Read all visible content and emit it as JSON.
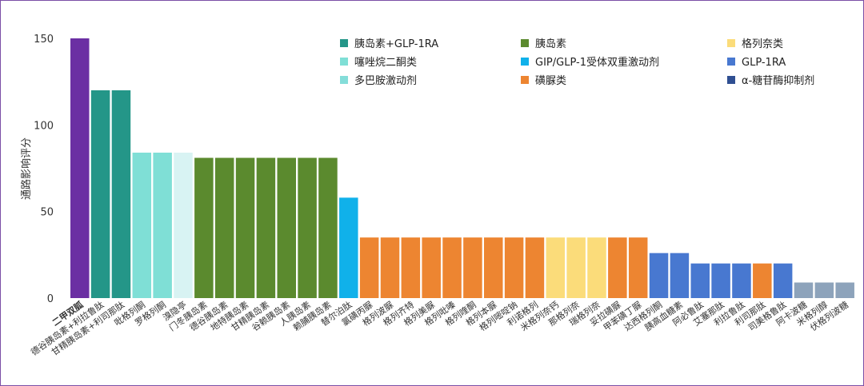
{
  "chart_data": {
    "type": "bar",
    "ylabel": "通路影响评分",
    "xlabel": "",
    "title": "",
    "ylim": [
      0,
      150
    ],
    "yticks": [
      0,
      50,
      100,
      150
    ],
    "grid": false,
    "legend_position": "top-right",
    "highlight_color": "#6b2fa3",
    "legend": [
      {
        "label": "胰岛素+GLP-1RA",
        "color": "#249688"
      },
      {
        "label": "胰岛素",
        "color": "#5b8a2e"
      },
      {
        "label": "格列奈类",
        "color": "#fbdc7a"
      },
      {
        "label": "噻唑烷二酮类",
        "color": "#7fdfd6"
      },
      {
        "label": "GIP/GLP-1受体双重激动剂",
        "color": "#10b1ea"
      },
      {
        "label": "GLP-1RA",
        "color": "#4878d0"
      },
      {
        "label": "多巴胺激动剂",
        "color": "#84ddd9"
      },
      {
        "label": "磺脲类",
        "color": "#ed8531"
      },
      {
        "label": "α-糖苷酶抑制剂",
        "color": "#2f4f92"
      }
    ],
    "categories": [
      "二甲双胍",
      "德谷胰岛素+利拉鲁肽",
      "甘精胰岛素+利司那肽",
      "吡格列酮",
      "罗格列酮",
      "溴隐亭",
      "门冬胰岛素",
      "德谷胰岛素",
      "地特胰岛素",
      "甘精胰岛素",
      "谷赖胰岛素",
      "人胰岛素",
      "赖脯胰岛素",
      "替尔泊肽",
      "氯磺丙脲",
      "格列波脲",
      "格列齐特",
      "格列美脲",
      "格列吡嗪",
      "格列喹酮",
      "格列本脲",
      "格列嘧啶钠",
      "利诺格列",
      "米格列奈钙",
      "那格列奈",
      "瑞格列奈",
      "妥拉磺脲",
      "甲苯磺丁脲",
      "达西格列酮",
      "胰高血糖素",
      "阿必鲁肽",
      "艾塞那肽",
      "利拉鲁肽",
      "利司那肽",
      "司美格鲁肽",
      "阿卡波糖",
      "米格列醇",
      "伏格列波糖"
    ],
    "values": [
      150,
      120,
      120,
      84,
      84,
      84,
      81,
      81,
      81,
      81,
      81,
      81,
      81,
      58,
      35,
      35,
      35,
      35,
      35,
      35,
      35,
      35,
      35,
      35,
      35,
      35,
      35,
      35,
      26,
      26,
      20,
      20,
      20,
      20,
      20,
      9,
      9,
      9
    ],
    "colors": [
      "#6b2fa3",
      "#249688",
      "#249688",
      "#7fdfd6",
      "#7fdfd6",
      "#d8f3f3",
      "#5b8a2e",
      "#5b8a2e",
      "#5b8a2e",
      "#5b8a2e",
      "#5b8a2e",
      "#5b8a2e",
      "#5b8a2e",
      "#10b1ea",
      "#ed8531",
      "#ed8531",
      "#ed8531",
      "#ed8531",
      "#ed8531",
      "#ed8531",
      "#ed8531",
      "#ed8531",
      "#ed8531",
      "#fbdc7a",
      "#fbdc7a",
      "#fbdc7a",
      "#ed8531",
      "#ed8531",
      "#4878d0",
      "#4878d0",
      "#4878d0",
      "#4878d0",
      "#4878d0",
      "#ed8531",
      "#4878d0",
      "#8da3bb",
      "#8da3bb",
      "#8da3bb"
    ]
  }
}
